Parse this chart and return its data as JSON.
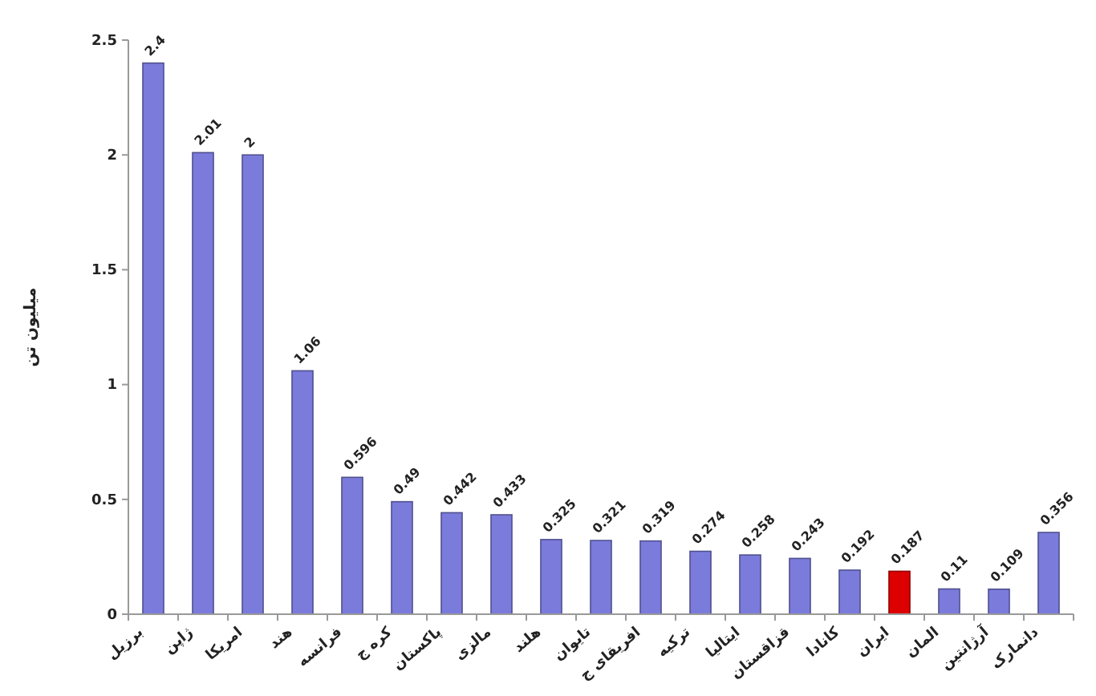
{
  "chart_data": {
    "type": "bar",
    "ylabel": "میلیون تن",
    "categories": [
      "برزیل",
      "ژاپن",
      "امریکا",
      "هند",
      "فرانسه",
      "کره ج",
      "پاکستان",
      "مالزی",
      "هلند",
      "تایوان",
      "افریقای ج",
      "ترکیه",
      "ایتالیا",
      "قزاقستان",
      "کانادا",
      "ایران",
      "المان",
      "آرژانتین",
      "دانمارک"
    ],
    "values": [
      2.4,
      2.01,
      2,
      1.06,
      0.596,
      0.49,
      0.442,
      0.433,
      0.325,
      0.321,
      0.319,
      0.274,
      0.258,
      0.243,
      0.192,
      0.187,
      0.11,
      0.109,
      0.356
    ],
    "colors": [
      "#7b7bdc",
      "#7b7bdc",
      "#7b7bdc",
      "#7b7bdc",
      "#7b7bdc",
      "#7b7bdc",
      "#7b7bdc",
      "#7b7bdc",
      "#7b7bdc",
      "#7b7bdc",
      "#7b7bdc",
      "#7b7bdc",
      "#7b7bdc",
      "#7b7bdc",
      "#7b7bdc",
      "#dd0000",
      "#7b7bdc",
      "#7b7bdc",
      "#7b7bdc"
    ],
    "ylim": [
      0,
      2.5
    ],
    "yticks": [
      0,
      0.5,
      1,
      1.5,
      2,
      2.5
    ],
    "data_labels": true
  }
}
